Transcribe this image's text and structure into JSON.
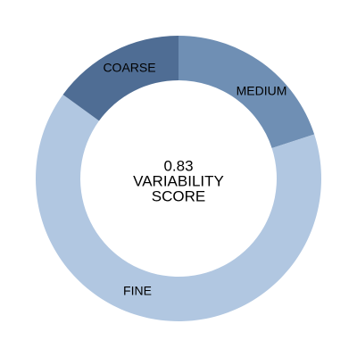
{
  "chart_data": {
    "type": "pie",
    "variant": "donut",
    "categories": [
      "MEDIUM",
      "FINE",
      "COARSE"
    ],
    "values": [
      0.2,
      0.65,
      0.15
    ],
    "colors": [
      "#6f8fb4",
      "#b1c7e1",
      "#4f6d94"
    ],
    "center": {
      "value": "0.83",
      "label_line1": "VARIABILITY",
      "label_line2": "SCORE"
    },
    "legend": "none"
  }
}
